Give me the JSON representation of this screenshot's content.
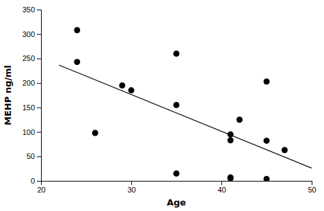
{
  "chart_data": {
    "type": "scatter",
    "xlabel": "Age",
    "ylabel": "MEHP ng/ml",
    "xlim": [
      20,
      50
    ],
    "ylim": [
      0,
      350
    ],
    "xticks": [
      20,
      30,
      40,
      50
    ],
    "yticks": [
      0,
      50,
      100,
      150,
      200,
      250,
      300,
      350
    ],
    "series": [
      {
        "type": "scatter",
        "color": "black",
        "x": [
          24,
          24,
          26,
          29,
          30,
          35,
          35,
          35,
          41,
          41,
          41,
          41,
          42,
          45,
          45,
          45,
          47
        ],
        "values": [
          308,
          243,
          98,
          195,
          185,
          155,
          15,
          260,
          95,
          83,
          7,
          5,
          125,
          203,
          4,
          82,
          63
        ]
      },
      {
        "type": "line",
        "color": "black",
        "x": [
          22,
          50
        ],
        "values": [
          236.547207,
          25.958039
        ]
      }
    ]
  }
}
